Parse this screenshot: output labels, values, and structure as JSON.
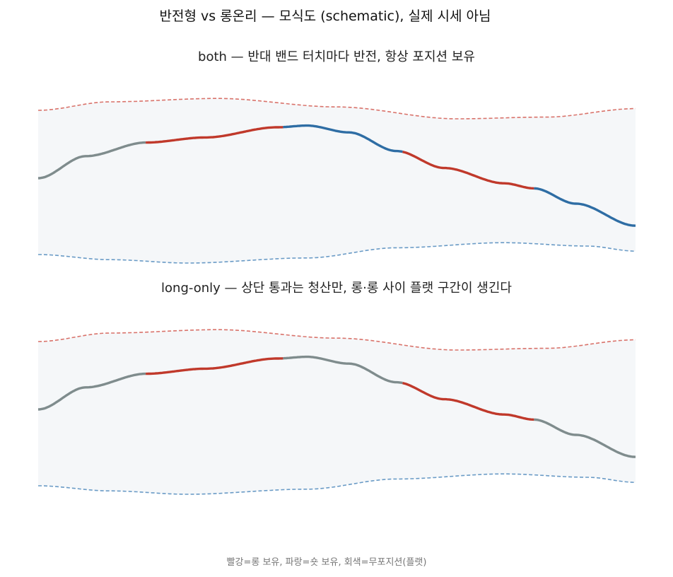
{
  "title": "반전형 vs 롱온리 — 모식도 (schematic), 실제 시세 아님",
  "caption": "빨강=롱 보유, 파랑=숏 보유, 회색=무포지션(플랫)",
  "colors": {
    "long": "#c0392b",
    "short": "#2e6da4",
    "flat": "#7f8c8d",
    "upper_band": "#d9736b",
    "lower_band": "#6a9bc6",
    "band_fill": "#f5f7f9"
  },
  "chart_data": [
    {
      "type": "line",
      "subtitle": "both — 반대 밴드 터치마다 반전, 항상 포지션 보유",
      "x_range": [
        0,
        100
      ],
      "y_range": [
        0,
        100
      ],
      "upper_band": [
        [
          0,
          90
        ],
        [
          12,
          95
        ],
        [
          30,
          97
        ],
        [
          50,
          92
        ],
        [
          70,
          85
        ],
        [
          85,
          86
        ],
        [
          100,
          91
        ]
      ],
      "lower_band": [
        [
          0,
          5
        ],
        [
          12,
          2
        ],
        [
          25,
          0
        ],
        [
          45,
          3
        ],
        [
          60,
          9
        ],
        [
          78,
          12
        ],
        [
          92,
          10
        ],
        [
          100,
          7
        ]
      ],
      "price": [
        [
          0,
          50
        ],
        [
          8,
          63
        ],
        [
          18,
          71
        ],
        [
          28,
          74
        ],
        [
          40,
          80
        ],
        [
          45,
          81
        ],
        [
          52,
          77
        ],
        [
          60,
          66
        ],
        [
          68,
          56
        ],
        [
          78,
          47
        ],
        [
          83,
          44
        ],
        [
          90,
          35
        ],
        [
          100,
          22
        ]
      ],
      "segments": [
        {
          "x_start": 0,
          "x_end": 18,
          "position": "flat"
        },
        {
          "x_start": 18,
          "x_end": 41,
          "position": "long"
        },
        {
          "x_start": 41,
          "x_end": 61,
          "position": "short"
        },
        {
          "x_start": 61,
          "x_end": 83,
          "position": "long"
        },
        {
          "x_start": 83,
          "x_end": 100,
          "position": "short"
        }
      ]
    },
    {
      "type": "line",
      "subtitle": "long-only — 상단 통과는 청산만, 롱·롱 사이 플랫 구간이 생긴다",
      "x_range": [
        0,
        100
      ],
      "y_range": [
        0,
        100
      ],
      "upper_band": [
        [
          0,
          90
        ],
        [
          12,
          95
        ],
        [
          30,
          97
        ],
        [
          50,
          92
        ],
        [
          70,
          85
        ],
        [
          85,
          86
        ],
        [
          100,
          91
        ]
      ],
      "lower_band": [
        [
          0,
          5
        ],
        [
          12,
          2
        ],
        [
          25,
          0
        ],
        [
          45,
          3
        ],
        [
          60,
          9
        ],
        [
          78,
          12
        ],
        [
          92,
          10
        ],
        [
          100,
          7
        ]
      ],
      "price": [
        [
          0,
          50
        ],
        [
          8,
          63
        ],
        [
          18,
          71
        ],
        [
          28,
          74
        ],
        [
          40,
          80
        ],
        [
          45,
          81
        ],
        [
          52,
          77
        ],
        [
          60,
          66
        ],
        [
          68,
          56
        ],
        [
          78,
          47
        ],
        [
          83,
          44
        ],
        [
          90,
          35
        ],
        [
          100,
          22
        ]
      ],
      "segments": [
        {
          "x_start": 0,
          "x_end": 18,
          "position": "flat"
        },
        {
          "x_start": 18,
          "x_end": 41,
          "position": "long"
        },
        {
          "x_start": 41,
          "x_end": 61,
          "position": "flat"
        },
        {
          "x_start": 61,
          "x_end": 83,
          "position": "long"
        },
        {
          "x_start": 83,
          "x_end": 100,
          "position": "flat"
        }
      ]
    }
  ]
}
